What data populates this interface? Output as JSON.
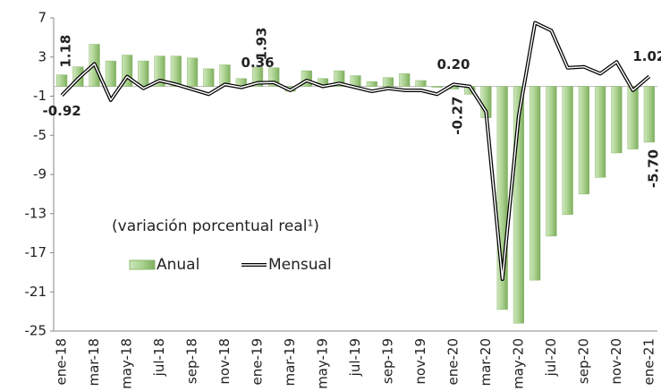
{
  "chart_data": {
    "type": "bar_line",
    "annotation": "(variación porcentual real¹)",
    "categories": [
      "ene-18",
      null,
      "mar-18",
      null,
      "may-18",
      null,
      "jul-18",
      null,
      "sep-18",
      null,
      "nov-18",
      null,
      "ene-19",
      null,
      "mar-19",
      null,
      "may-19",
      null,
      "jul-19",
      null,
      "sep-19",
      null,
      "nov-19",
      null,
      "ene-20",
      null,
      "mar-20",
      null,
      "may-20",
      null,
      "jul-20",
      null,
      "sep-20",
      null,
      "nov-20",
      null,
      "ene-21"
    ],
    "ylim": [
      -25,
      7
    ],
    "yticks": [
      7,
      3,
      -1,
      -5,
      -9,
      -13,
      -17,
      -21,
      -25
    ],
    "series": [
      {
        "name": "Anual",
        "type": "bar",
        "color": "#a9d18e",
        "values": [
          1.18,
          2.0,
          4.3,
          2.6,
          3.2,
          2.6,
          3.1,
          3.1,
          2.9,
          1.8,
          2.2,
          0.8,
          1.93,
          1.9,
          -0.5,
          1.6,
          0.8,
          1.6,
          1.1,
          0.5,
          0.9,
          1.3,
          0.6,
          -0.1,
          -0.27,
          -0.8,
          -3.2,
          -22.8,
          -24.2,
          -19.8,
          -15.3,
          -13.1,
          -11.0,
          -9.3,
          -6.8,
          -6.4,
          -5.7
        ],
        "value_labels": [
          "1.18",
          null,
          null,
          null,
          null,
          null,
          null,
          null,
          null,
          null,
          null,
          null,
          "1.93",
          null,
          null,
          null,
          null,
          null,
          null,
          null,
          null,
          null,
          null,
          null,
          "-0.27",
          null,
          null,
          null,
          null,
          null,
          null,
          null,
          null,
          null,
          null,
          null,
          "-5.70"
        ]
      },
      {
        "name": "Mensual",
        "type": "line",
        "color": "#000000",
        "values": [
          -0.92,
          0.8,
          2.3,
          -1.4,
          1.0,
          -0.2,
          0.6,
          0.2,
          -0.3,
          -0.8,
          0.2,
          -0.1,
          0.36,
          0.4,
          -0.4,
          0.6,
          0.0,
          0.3,
          -0.1,
          -0.5,
          -0.2,
          -0.4,
          -0.4,
          -0.8,
          0.2,
          0.0,
          -2.6,
          -19.7,
          -3.0,
          6.5,
          5.7,
          1.9,
          2.0,
          1.3,
          2.5,
          -0.4,
          1.02
        ],
        "value_labels": [
          "-0.92",
          null,
          null,
          null,
          null,
          null,
          null,
          null,
          null,
          null,
          null,
          null,
          "0.36",
          null,
          null,
          null,
          null,
          null,
          null,
          null,
          null,
          null,
          null,
          null,
          "0.20",
          null,
          null,
          null,
          null,
          null,
          null,
          null,
          null,
          null,
          null,
          null,
          "1.02"
        ]
      }
    ]
  }
}
